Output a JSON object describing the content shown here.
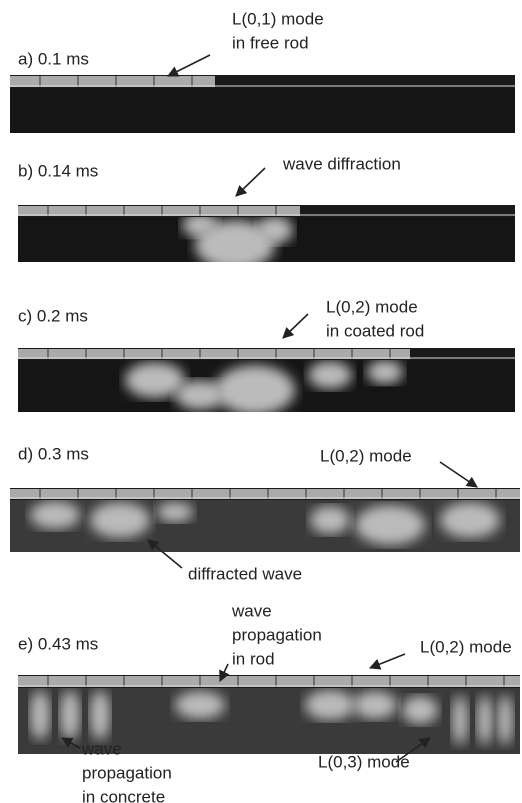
{
  "panels": [
    {
      "label": "a) 0.1 ms",
      "annotations": [
        [
          "L(0,1) mode",
          "in free rod"
        ]
      ]
    },
    {
      "label": "b) 0.14 ms",
      "annotations": [
        [
          "wave diffraction"
        ]
      ]
    },
    {
      "label": "c) 0.2 ms",
      "annotations": [
        [
          "L(0,2) mode",
          "in coated rod"
        ]
      ]
    },
    {
      "label": "d) 0.3 ms",
      "annotations": [
        [
          "L(0,2) mode"
        ],
        [
          "diffracted wave"
        ]
      ]
    },
    {
      "label": "e) 0.43 ms",
      "annotations": [
        [
          "wave",
          "propagation",
          "in rod"
        ],
        [
          "L(0,2) mode"
        ],
        [
          "wave",
          "propagation",
          "in concrete"
        ],
        [
          "L(0,3) mode"
        ]
      ]
    }
  ]
}
